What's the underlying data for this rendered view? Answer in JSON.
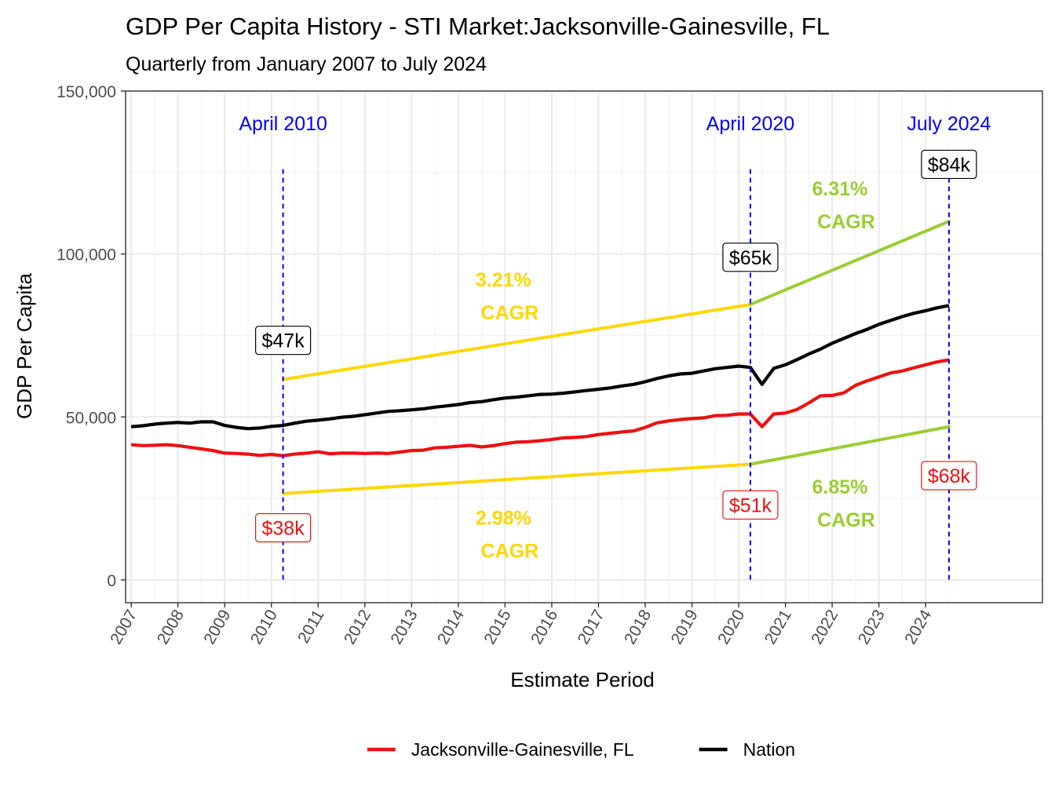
{
  "chart_data": {
    "type": "line",
    "title": "GDP Per Capita History - STI Market:Jacksonville-Gainesville, FL",
    "subtitle": "Quarterly from January 2007 to July 2024",
    "xlabel": "Estimate Period",
    "ylabel": "GDP Per Capita",
    "ylim": [
      -7000,
      150000
    ],
    "y_ticks": [
      {
        "value": 0,
        "label": "0"
      },
      {
        "value": 50000,
        "label": "50,000"
      },
      {
        "value": 100000,
        "label": "100,000"
      },
      {
        "value": 150000,
        "label": "150,000"
      }
    ],
    "x_ticks": [
      "2007",
      "2008",
      "2009",
      "2010",
      "2011",
      "2012",
      "2013",
      "2014",
      "2015",
      "2016",
      "2017",
      "2018",
      "2019",
      "2020",
      "2021",
      "2022",
      "2023",
      "2024"
    ],
    "grid": true,
    "legend_position": "bottom",
    "series": [
      {
        "name": "Jacksonville-Gainesville, FL",
        "color": "#ee1111",
        "points": [
          [
            2007.0,
            41500
          ],
          [
            2007.25,
            41200
          ],
          [
            2007.5,
            41300
          ],
          [
            2007.75,
            41500
          ],
          [
            2008.0,
            41200
          ],
          [
            2008.25,
            40700
          ],
          [
            2008.5,
            40200
          ],
          [
            2008.75,
            39700
          ],
          [
            2009.0,
            38900
          ],
          [
            2009.25,
            38800
          ],
          [
            2009.5,
            38600
          ],
          [
            2009.75,
            38200
          ],
          [
            2010.0,
            38500
          ],
          [
            2010.25,
            38100
          ],
          [
            2010.5,
            38600
          ],
          [
            2010.75,
            38900
          ],
          [
            2011.0,
            39300
          ],
          [
            2011.25,
            38700
          ],
          [
            2011.5,
            38900
          ],
          [
            2011.75,
            38900
          ],
          [
            2012.0,
            38800
          ],
          [
            2012.25,
            38900
          ],
          [
            2012.5,
            38800
          ],
          [
            2012.75,
            39200
          ],
          [
            2013.0,
            39700
          ],
          [
            2013.25,
            39800
          ],
          [
            2013.5,
            40500
          ],
          [
            2013.75,
            40700
          ],
          [
            2014.0,
            41000
          ],
          [
            2014.25,
            41300
          ],
          [
            2014.5,
            40800
          ],
          [
            2014.75,
            41200
          ],
          [
            2015.0,
            41800
          ],
          [
            2015.25,
            42300
          ],
          [
            2015.5,
            42400
          ],
          [
            2015.75,
            42700
          ],
          [
            2016.0,
            43100
          ],
          [
            2016.25,
            43600
          ],
          [
            2016.5,
            43700
          ],
          [
            2016.75,
            44000
          ],
          [
            2017.0,
            44600
          ],
          [
            2017.25,
            45000
          ],
          [
            2017.5,
            45400
          ],
          [
            2017.75,
            45700
          ],
          [
            2018.0,
            46800
          ],
          [
            2018.25,
            48200
          ],
          [
            2018.5,
            48800
          ],
          [
            2018.75,
            49200
          ],
          [
            2019.0,
            49500
          ],
          [
            2019.25,
            49700
          ],
          [
            2019.5,
            50400
          ],
          [
            2019.75,
            50500
          ],
          [
            2020.0,
            50900
          ],
          [
            2020.25,
            50900
          ],
          [
            2020.5,
            47000
          ],
          [
            2020.75,
            50900
          ],
          [
            2021.0,
            51200
          ],
          [
            2021.25,
            52300
          ],
          [
            2021.5,
            54300
          ],
          [
            2021.75,
            56500
          ],
          [
            2022.0,
            56600
          ],
          [
            2022.25,
            57400
          ],
          [
            2022.5,
            59700
          ],
          [
            2022.75,
            61100
          ],
          [
            2023.0,
            62300
          ],
          [
            2023.25,
            63500
          ],
          [
            2023.5,
            64100
          ],
          [
            2023.75,
            65100
          ],
          [
            2024.0,
            66000
          ],
          [
            2024.25,
            66900
          ],
          [
            2024.5,
            67500
          ]
        ]
      },
      {
        "name": "Nation",
        "color": "#000000",
        "points": [
          [
            2007.0,
            47000
          ],
          [
            2007.25,
            47300
          ],
          [
            2007.5,
            47800
          ],
          [
            2007.75,
            48100
          ],
          [
            2008.0,
            48300
          ],
          [
            2008.25,
            48100
          ],
          [
            2008.5,
            48500
          ],
          [
            2008.75,
            48500
          ],
          [
            2009.0,
            47400
          ],
          [
            2009.25,
            46800
          ],
          [
            2009.5,
            46400
          ],
          [
            2009.75,
            46600
          ],
          [
            2010.0,
            47100
          ],
          [
            2010.25,
            47400
          ],
          [
            2010.5,
            48100
          ],
          [
            2010.75,
            48700
          ],
          [
            2011.0,
            49000
          ],
          [
            2011.25,
            49400
          ],
          [
            2011.5,
            49900
          ],
          [
            2011.75,
            50200
          ],
          [
            2012.0,
            50700
          ],
          [
            2012.25,
            51200
          ],
          [
            2012.5,
            51700
          ],
          [
            2012.75,
            51900
          ],
          [
            2013.0,
            52200
          ],
          [
            2013.25,
            52500
          ],
          [
            2013.5,
            53000
          ],
          [
            2013.75,
            53400
          ],
          [
            2014.0,
            53800
          ],
          [
            2014.25,
            54400
          ],
          [
            2014.5,
            54700
          ],
          [
            2014.75,
            55300
          ],
          [
            2015.0,
            55800
          ],
          [
            2015.25,
            56100
          ],
          [
            2015.5,
            56500
          ],
          [
            2015.75,
            56900
          ],
          [
            2016.0,
            57000
          ],
          [
            2016.25,
            57300
          ],
          [
            2016.5,
            57700
          ],
          [
            2016.75,
            58100
          ],
          [
            2017.0,
            58500
          ],
          [
            2017.25,
            58900
          ],
          [
            2017.5,
            59500
          ],
          [
            2017.75,
            60000
          ],
          [
            2018.0,
            60800
          ],
          [
            2018.25,
            61800
          ],
          [
            2018.5,
            62600
          ],
          [
            2018.75,
            63200
          ],
          [
            2019.0,
            63400
          ],
          [
            2019.25,
            64100
          ],
          [
            2019.5,
            64800
          ],
          [
            2019.75,
            65200
          ],
          [
            2020.0,
            65600
          ],
          [
            2020.25,
            65200
          ],
          [
            2020.5,
            60000
          ],
          [
            2020.75,
            64900
          ],
          [
            2021.0,
            66000
          ],
          [
            2021.25,
            67600
          ],
          [
            2021.5,
            69300
          ],
          [
            2021.75,
            70800
          ],
          [
            2022.0,
            72600
          ],
          [
            2022.25,
            74100
          ],
          [
            2022.5,
            75600
          ],
          [
            2022.75,
            76900
          ],
          [
            2023.0,
            78400
          ],
          [
            2023.25,
            79600
          ],
          [
            2023.5,
            80800
          ],
          [
            2023.75,
            81800
          ],
          [
            2024.0,
            82600
          ],
          [
            2024.25,
            83500
          ],
          [
            2024.5,
            84200
          ]
        ]
      }
    ],
    "trend_lines": [
      {
        "from": [
          2010.25,
          61500
        ],
        "to": [
          2020.25,
          84500
        ],
        "color": "#ffd700",
        "cagr_value": "3.21%",
        "cagr_label": "CAGR",
        "text_at": [
          2015.1,
          90000
        ]
      },
      {
        "from": [
          2020.25,
          84500
        ],
        "to": [
          2024.5,
          110000
        ],
        "color": "#9acd32",
        "cagr_value": "6.31%",
        "cagr_label": "CAGR",
        "text_at": [
          2022.3,
          118000
        ]
      },
      {
        "from": [
          2010.25,
          26500
        ],
        "to": [
          2020.25,
          35500
        ],
        "color": "#ffd700",
        "cagr_value": "2.98%",
        "cagr_label": "CAGR",
        "text_at": [
          2015.1,
          17000
        ]
      },
      {
        "from": [
          2020.25,
          35500
        ],
        "to": [
          2024.5,
          47000
        ],
        "color": "#9acd32",
        "cagr_value": "6.85%",
        "cagr_label": "CAGR",
        "text_at": [
          2022.3,
          26500
        ]
      }
    ],
    "markers": [
      {
        "x": 2010.25,
        "label": "April 2010",
        "nation_label": "$47k",
        "nation_label_y": 73500,
        "local_label": "$38k",
        "local_label_y": 16000
      },
      {
        "x": 2020.25,
        "label": "April 2020",
        "nation_label": "$65k",
        "nation_label_y": 99000,
        "local_label": "$51k",
        "local_label_y": 23000
      },
      {
        "x": 2024.5,
        "label": "July 2024",
        "nation_label": "$84k",
        "nation_label_y": 127500,
        "local_label": "$68k",
        "local_label_y": 32000
      }
    ],
    "marker_line_top": 126000,
    "marker_label_y": 138000,
    "colors": {
      "marker": "#0000ff",
      "local_text": "#ee1111",
      "nation_text": "#000000",
      "grid": "#ebebeb",
      "axis_text": "#4d4d4d"
    }
  }
}
